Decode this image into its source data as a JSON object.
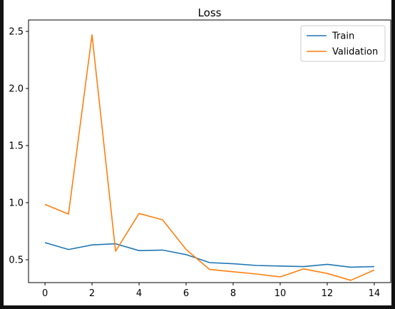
{
  "chart_data": {
    "type": "line",
    "title": "Loss",
    "xlabel": "",
    "ylabel": "",
    "x": [
      0,
      1,
      2,
      3,
      4,
      5,
      6,
      7,
      8,
      9,
      10,
      11,
      12,
      13,
      14
    ],
    "xlim": [
      -0.7,
      14.7
    ],
    "ylim": [
      0.3,
      2.6
    ],
    "xticks": [
      0,
      2,
      4,
      6,
      8,
      10,
      12,
      14
    ],
    "yticks": [
      0.5,
      1.0,
      1.5,
      2.0,
      2.5
    ],
    "xtick_labels": [
      "0",
      "2",
      "4",
      "6",
      "8",
      "10",
      "12",
      "14"
    ],
    "ytick_labels": [
      "0.5",
      "1.0",
      "1.5",
      "2.0",
      "2.5"
    ],
    "grid": false,
    "legend_position": "top-right",
    "series": [
      {
        "name": "Train",
        "color": "#1f77b4",
        "values": [
          0.65,
          0.59,
          0.63,
          0.64,
          0.58,
          0.585,
          0.545,
          0.475,
          0.465,
          0.45,
          0.445,
          0.44,
          0.46,
          0.435,
          0.44
        ]
      },
      {
        "name": "Validation",
        "color": "#ff7f0e",
        "values": [
          0.985,
          0.9,
          2.47,
          0.575,
          0.905,
          0.85,
          0.59,
          0.415,
          0.395,
          0.375,
          0.35,
          0.42,
          0.38,
          0.32,
          0.41
        ]
      }
    ]
  }
}
